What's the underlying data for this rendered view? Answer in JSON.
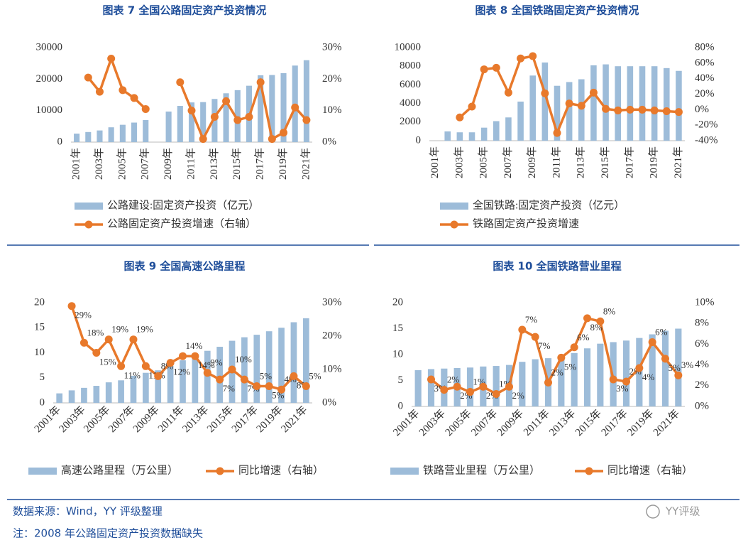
{
  "chart_data": [
    {
      "type": "combo",
      "title": "图表 7 全国公路固定资产投资情况",
      "categories": [
        "2001年",
        null,
        "2003年",
        null,
        "2005年",
        null,
        "2007年",
        null,
        "2009年",
        null,
        "2011年",
        null,
        "2013年",
        null,
        "2015年",
        null,
        "2017年",
        null,
        "2019年",
        null,
        "2021年"
      ],
      "series": [
        {
          "name": "公路建设:固定资产投资（亿元）",
          "type": "bar",
          "color": "#9dbcd9",
          "values": [
            2700,
            3200,
            3700,
            4700,
            5500,
            6200,
            7000,
            null,
            9700,
            11500,
            12600,
            12700,
            13700,
            15500,
            16500,
            17900,
            21200,
            21300,
            21900,
            24300,
            26000
          ]
        },
        {
          "name": "公路固定资产投资增速（右轴）",
          "type": "line",
          "axis": "y2",
          "color": "#e8792b",
          "values": [
            null,
            20.5,
            16,
            26.5,
            16.5,
            14,
            10.5,
            null,
            null,
            19,
            10,
            1,
            8,
            13,
            7,
            8,
            19,
            1,
            3,
            11,
            7
          ]
        }
      ],
      "ylim": [
        0,
        30000
      ],
      "yticks": [
        0,
        10000,
        20000,
        30000
      ],
      "y2lim": [
        0,
        30
      ],
      "y2ticks": [
        {
          "value": 0,
          "label": "0%"
        },
        {
          "value": 10,
          "label": "10%"
        },
        {
          "value": 20,
          "label": "20%"
        },
        {
          "value": 30,
          "label": "30%"
        }
      ]
    },
    {
      "type": "combo",
      "title": "图表 8 全国铁路固定资产投资情况",
      "categories": [
        "2001年",
        null,
        "2003年",
        null,
        "2005年",
        null,
        "2007年",
        null,
        "2009年",
        null,
        "2011年",
        null,
        "2013年",
        null,
        "2015年",
        null,
        "2017年",
        null,
        "2019年",
        null,
        "2021年"
      ],
      "series": [
        {
          "name": "全国铁路:固定资产投资（亿元）",
          "type": "bar",
          "color": "#9dbcd9",
          "values": [
            null,
            1000,
            900,
            900,
            1400,
            2100,
            2500,
            4200,
            7000,
            8400,
            5900,
            6300,
            6600,
            8100,
            8200,
            8000,
            8000,
            8000,
            8000,
            7800,
            7500
          ]
        },
        {
          "name": "铁路固定资产投资增速",
          "type": "line",
          "axis": "y2",
          "color": "#e8792b",
          "values": [
            null,
            null,
            -10,
            4,
            52,
            54,
            22,
            66,
            69,
            21,
            -30,
            8,
            5,
            22,
            1,
            -1,
            0,
            0,
            -1,
            -2,
            -3
          ]
        }
      ],
      "ylim": [
        0,
        10000
      ],
      "yticks": [
        0,
        2000,
        4000,
        6000,
        8000,
        10000
      ],
      "y2lim": [
        -40,
        80
      ],
      "y2ticks": [
        {
          "value": -40,
          "label": "-40%"
        },
        {
          "value": -20,
          "label": "-20%"
        },
        {
          "value": 0,
          "label": "0%"
        },
        {
          "value": 20,
          "label": "20%"
        },
        {
          "value": 40,
          "label": "40%"
        },
        {
          "value": 60,
          "label": "60%"
        },
        {
          "value": 80,
          "label": "80%"
        }
      ]
    },
    {
      "type": "combo",
      "title": "图表 9 全国高速公路里程",
      "categories": [
        "2001年",
        null,
        "2003年",
        null,
        "2005年",
        null,
        "2007年",
        null,
        "2009年",
        null,
        "2011年",
        null,
        "2013年",
        null,
        "2015年",
        null,
        "2017年",
        null,
        "2019年",
        null,
        "2021年"
      ],
      "series": [
        {
          "name": "高速公路里程（万公里）",
          "type": "bar",
          "color": "#9dbcd9",
          "values": [
            1.9,
            2.5,
            3.0,
            3.4,
            4.1,
            4.5,
            5.4,
            6.0,
            6.5,
            7.4,
            8.5,
            9.6,
            10.4,
            11.2,
            12.4,
            13.1,
            13.6,
            14.3,
            15.0,
            16.1,
            16.9
          ]
        },
        {
          "name": "同比增速（右轴）",
          "type": "line",
          "axis": "y2",
          "color": "#e8792b",
          "values": [
            null,
            29,
            18,
            15,
            19,
            11,
            19,
            11,
            8,
            12,
            14,
            14,
            9,
            7,
            10,
            7,
            5,
            5,
            4,
            8,
            5
          ],
          "value_labels": [
            null,
            "29%",
            "18%",
            "15%",
            "19%",
            "11%",
            "19%",
            "11%",
            "8%",
            "12%",
            "14%",
            "14%",
            "9%",
            "7%",
            "10%",
            "7%",
            "5%",
            "5%",
            "4%",
            "8%",
            "5%"
          ]
        }
      ],
      "ylim": [
        0,
        20
      ],
      "yticks": [
        0,
        5,
        10,
        15,
        20
      ],
      "y2lim": [
        0,
        30
      ],
      "y2ticks": [
        {
          "value": 0,
          "label": "0%"
        },
        {
          "value": 10,
          "label": "10%"
        },
        {
          "value": 20,
          "label": "20%"
        },
        {
          "value": 30,
          "label": "30%"
        }
      ]
    },
    {
      "type": "combo",
      "title": "图表 10 全国铁路营业里程",
      "categories": [
        "2001年",
        null,
        "2003年",
        null,
        "2005年",
        null,
        "2007年",
        null,
        "2009年",
        null,
        "2011年",
        null,
        "2013年",
        null,
        "2015年",
        null,
        "2017年",
        null,
        "2019年",
        null,
        "2021年"
      ],
      "series": [
        {
          "name": "铁路营业里程（万公里）",
          "type": "bar",
          "color": "#9dbcd9",
          "values": [
            7.0,
            7.2,
            7.3,
            7.4,
            7.5,
            7.7,
            7.8,
            8.0,
            8.6,
            9.1,
            9.3,
            9.8,
            10.3,
            11.2,
            12.1,
            12.4,
            12.7,
            13.2,
            13.9,
            14.6,
            15.0
          ]
        },
        {
          "name": "同比增速（右轴）",
          "type": "line",
          "axis": "y2",
          "color": "#e8792b",
          "values": [
            null,
            2.6,
            1.6,
            1.9,
            1.4,
            1.9,
            1.2,
            1.9,
            7.4,
            6.7,
            2.3,
            4.7,
            5.7,
            8.5,
            8.2,
            2.6,
            2.4,
            3.7,
            6.2,
            4.6,
            3.0
          ],
          "value_labels": [
            null,
            "3%",
            "2%",
            "2%",
            "1%",
            "2%",
            "1%",
            "2%",
            "7%",
            "7%",
            "2%",
            "5%",
            "6%",
            "8%",
            "8%",
            "3%",
            "2%",
            "4%",
            "6%",
            "5%",
            "3%"
          ]
        }
      ],
      "ylim": [
        0,
        20
      ],
      "yticks": [
        0,
        5,
        10,
        15,
        20
      ],
      "y2lim": [
        0,
        10
      ],
      "y2ticks": [
        {
          "value": 0,
          "label": "0%"
        },
        {
          "value": 2,
          "label": "2%"
        },
        {
          "value": 4,
          "label": "4%"
        },
        {
          "value": 6,
          "label": "6%"
        },
        {
          "value": 8,
          "label": "8%"
        },
        {
          "value": 10,
          "label": "10%"
        }
      ]
    }
  ],
  "notes": [
    "数据来源：Wind，YY 评级整理",
    "注：2008 年公路固定资产投资数据缺失"
  ],
  "watermark": "YY评级"
}
